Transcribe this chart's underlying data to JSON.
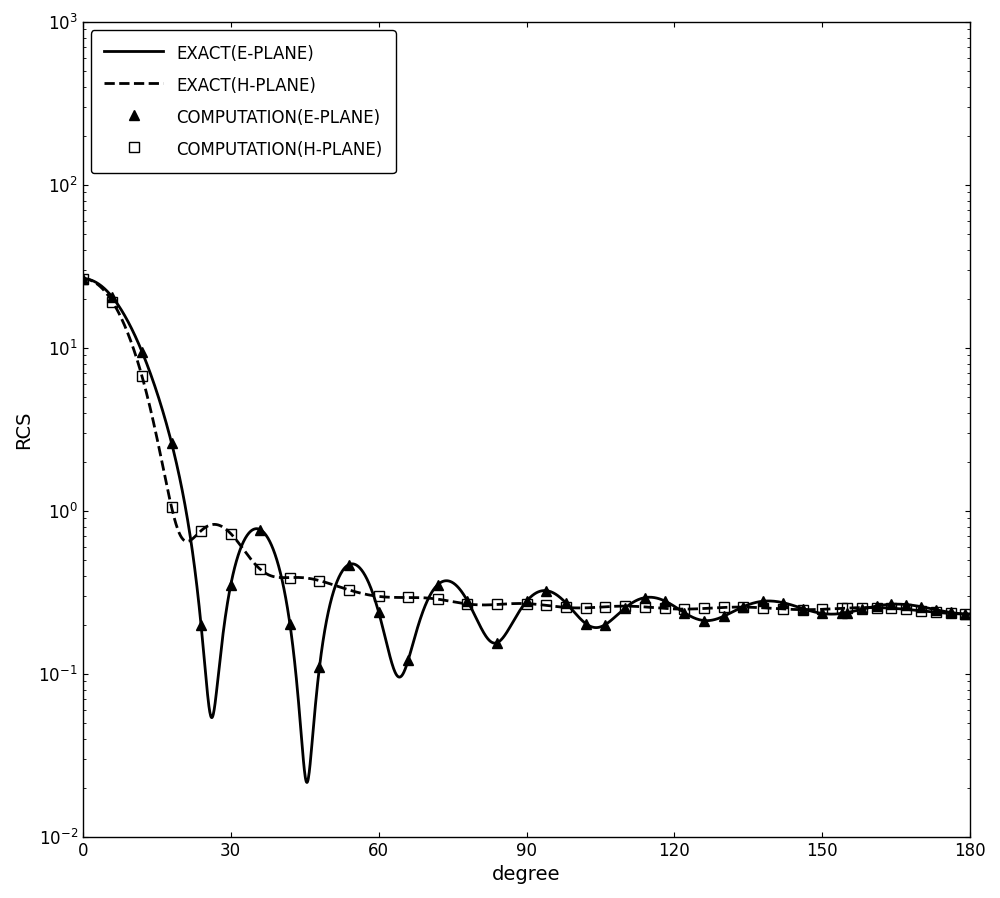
{
  "title": "",
  "xlabel": "degree",
  "ylabel": "RCS",
  "xlim": [
    0,
    180
  ],
  "ylim_log": [
    -2,
    3
  ],
  "legend_entries": [
    "EXACT(E-PLANE)",
    "EXACT(H-PLANE)",
    "COMPUTATION(E-PLANE)",
    "COMPUTATION(H-PLANE)"
  ],
  "line_color": "#000000",
  "background_color": "#ffffff",
  "figsize": [
    10.0,
    8.98
  ],
  "dpi": 100,
  "ka": 10.0
}
